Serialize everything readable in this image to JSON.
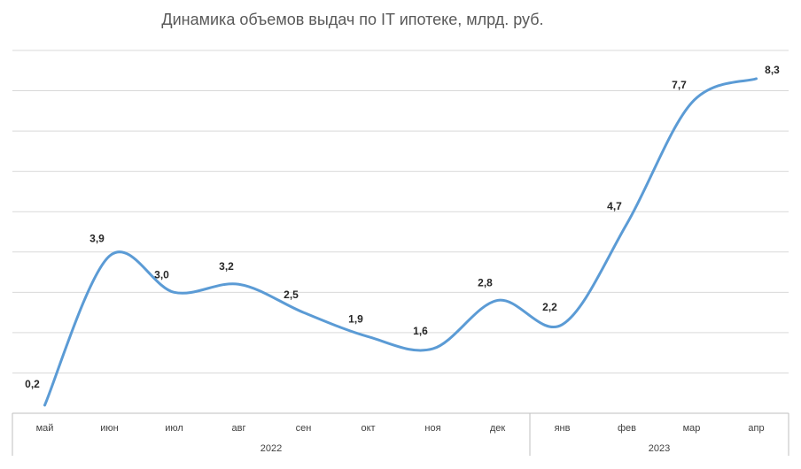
{
  "chart_data": {
    "type": "line",
    "title": "Динамика объемов выдач по IT ипотеке, млрд. руб.",
    "categories": [
      "май",
      "июн",
      "июл",
      "авг",
      "сен",
      "окт",
      "ноя",
      "дек",
      "янв",
      "фев",
      "мар",
      "апр"
    ],
    "groups": [
      {
        "label": "2022",
        "count": 8
      },
      {
        "label": "2023",
        "count": 4
      }
    ],
    "series": [
      {
        "values": [
          0.2,
          3.9,
          3.0,
          3.2,
          2.5,
          1.9,
          1.6,
          2.8,
          2.2,
          4.7,
          7.7,
          8.3
        ],
        "labels": [
          "0,2",
          "3,9",
          "3,0",
          "3,2",
          "2,5",
          "1,9",
          "1,6",
          "2,8",
          "2,2",
          "4,7",
          "7,7",
          "8,3"
        ],
        "color": "#5b9bd5"
      }
    ],
    "ylim": [
      0,
      9
    ],
    "gridlines": true,
    "smooth": true
  }
}
